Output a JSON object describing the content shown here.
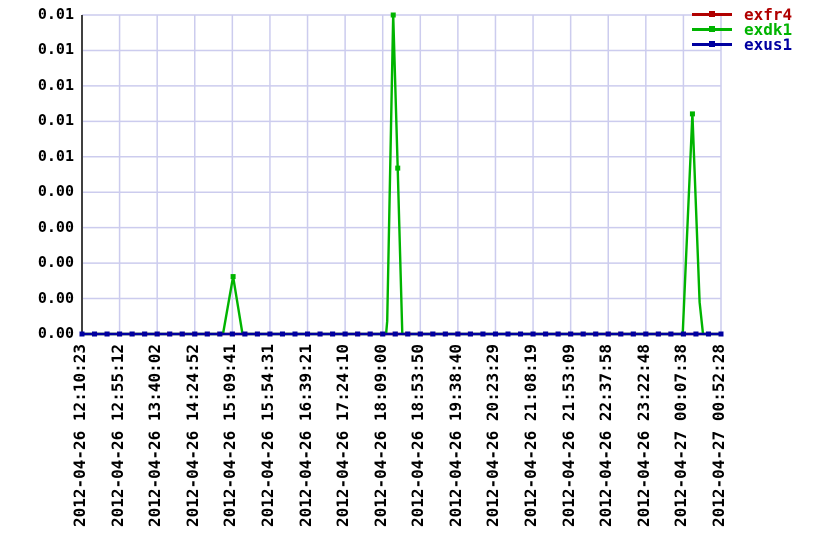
{
  "chart_data": {
    "type": "line",
    "title": "",
    "grid": true,
    "legend_position": "outside-top-right",
    "ylim": [
      0,
      0.01
    ],
    "y_tick_count": 10,
    "y_tick_labels_top_to_bottom": [
      "0.01",
      "0.01",
      "0.01",
      "0.01",
      "0.01",
      "0.00",
      "0.00",
      "0.00",
      "0.00",
      "0.00"
    ],
    "x_range": [
      "2012-04-26 12:10:23",
      "2012-04-27 00:52:28"
    ],
    "x_tick_labels": [
      "2012-04-26 12:10:23",
      "2012-04-26 12:55:12",
      "2012-04-26 13:40:02",
      "2012-04-26 14:24:52",
      "2012-04-26 15:09:41",
      "2012-04-26 15:54:31",
      "2012-04-26 16:39:21",
      "2012-04-26 17:24:10",
      "2012-04-26 18:09:00",
      "2012-04-26 18:53:50",
      "2012-04-26 19:38:40",
      "2012-04-26 20:23:29",
      "2012-04-26 21:08:19",
      "2012-04-26 21:53:09",
      "2012-04-26 22:37:58",
      "2012-04-26 23:22:48",
      "2012-04-27 00:07:38",
      "2012-04-27 00:52:28"
    ],
    "samples_per_series": 52,
    "series": [
      {
        "name": "exfr4",
        "color": "#b00000",
        "baseline_value": 0,
        "spikes": []
      },
      {
        "name": "exdk1",
        "color": "#00b400",
        "baseline_value": 0,
        "spikes": [
          {
            "shape_tick_value_pairs": [
              [
                3.75,
                0
              ],
              [
                4.02,
                0.0018
              ],
              [
                4.27,
                0
              ]
            ],
            "marker_points": [
              [
                4.02,
                0.0018
              ]
            ]
          },
          {
            "shape_tick_value_pairs": [
              [
                8.09,
                0
              ],
              [
                8.12,
                0.0004
              ],
              [
                8.28,
                0.01
              ],
              [
                8.4,
                0.0052
              ],
              [
                8.52,
                0
              ]
            ],
            "marker_points": [
              [
                8.28,
                0.01
              ],
              [
                8.4,
                0.0052
              ]
            ]
          },
          {
            "shape_tick_value_pairs": [
              [
                15.98,
                0
              ],
              [
                16.24,
                0.0069
              ],
              [
                16.43,
                0.001
              ],
              [
                16.52,
                0
              ]
            ],
            "marker_points": [
              [
                16.24,
                0.0069
              ]
            ]
          }
        ]
      },
      {
        "name": "exus1",
        "color": "#0000a0",
        "baseline_value": 0,
        "spikes": []
      }
    ]
  },
  "legend": {
    "items": [
      {
        "label": "exfr4",
        "color": "#b00000"
      },
      {
        "label": "exdk1",
        "color": "#00b400"
      },
      {
        "label": "exus1",
        "color": "#0000a0"
      }
    ]
  },
  "colors": {
    "grid": "#ccccee",
    "axis": "#404040",
    "background": "#ffffff"
  }
}
